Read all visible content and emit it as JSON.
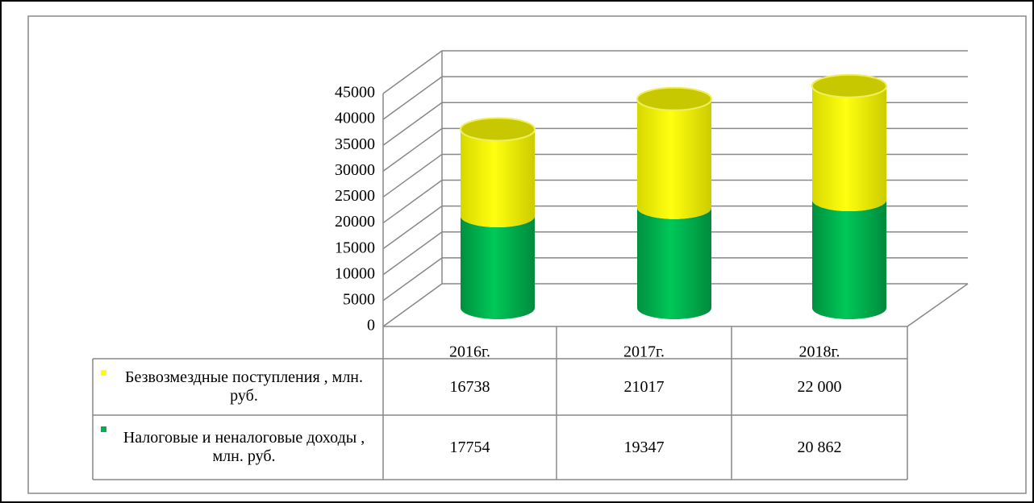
{
  "chart_data": {
    "type": "bar",
    "stacked": true,
    "categories": [
      "2016г.",
      "2017г.",
      "2018г."
    ],
    "series": [
      {
        "name": "Налоговые и неналоговые доходы , млн. руб.",
        "color": "#00b050",
        "values": [
          17754,
          19347,
          20862
        ],
        "value_labels": [
          "17754",
          "19347",
          "20 862"
        ]
      },
      {
        "name": "Безвозмездные поступления , млн. руб.",
        "color": "#ffff00",
        "values": [
          16738,
          21017,
          22000
        ],
        "value_labels": [
          "16738",
          "21017",
          "22 000"
        ]
      }
    ],
    "ylim": [
      0,
      45000
    ],
    "yticks": [
      0,
      5000,
      10000,
      15000,
      20000,
      25000,
      30000,
      35000,
      40000,
      45000
    ],
    "grid": true
  }
}
